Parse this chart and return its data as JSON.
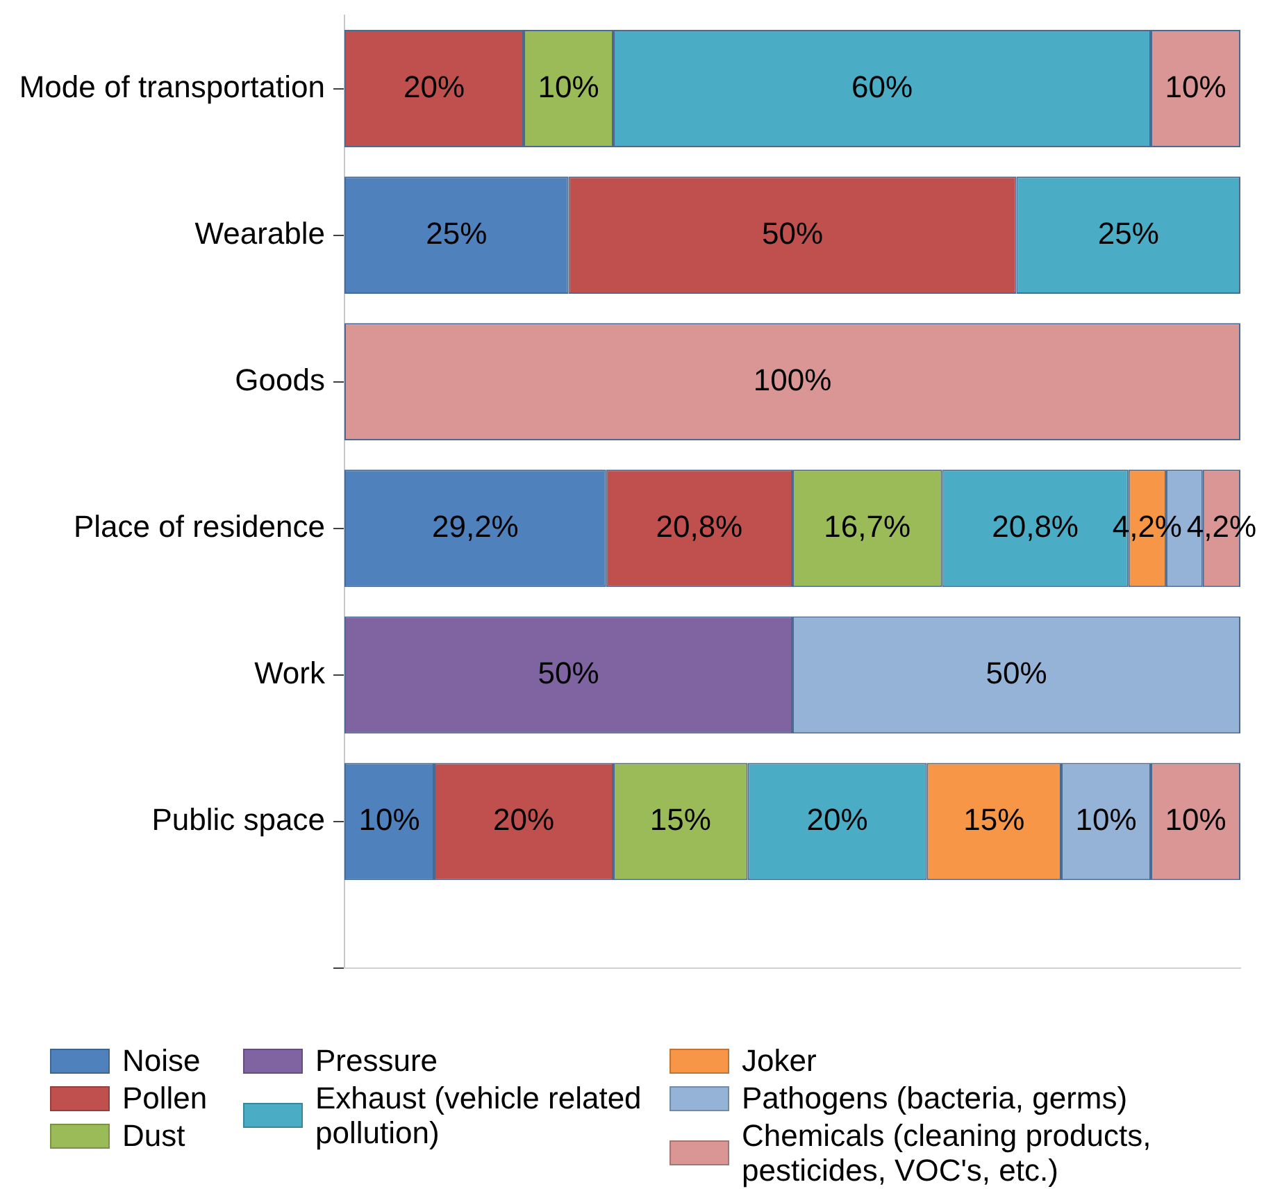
{
  "chart_data": {
    "type": "bar",
    "orientation": "horizontal",
    "stacked": true,
    "categories": [
      "Mode of transportation",
      "Wearable",
      "Goods",
      "Place of residence",
      "Work",
      "Public space",
      null
    ],
    "xlim": [
      0,
      100
    ],
    "tick_labels": "y",
    "legend": "bottom",
    "series": [
      {
        "name": "Noise",
        "color": "#4f81bd",
        "values": [
          null,
          25,
          null,
          29.2,
          null,
          10,
          null
        ],
        "value_labels": [
          null,
          "25%",
          null,
          "29,2%",
          null,
          "10%",
          null
        ]
      },
      {
        "name": "Pollen",
        "color": "#c0504d",
        "values": [
          20,
          50,
          null,
          20.8,
          null,
          20,
          null
        ],
        "value_labels": [
          "20%",
          "50%",
          null,
          "20,8%",
          null,
          "20%",
          null
        ]
      },
      {
        "name": "Dust",
        "color": "#9bbb59",
        "values": [
          10,
          null,
          null,
          16.7,
          null,
          15,
          null
        ],
        "value_labels": [
          "10%",
          null,
          null,
          "16,7%",
          null,
          "15%",
          null
        ]
      },
      {
        "name": "Pressure",
        "color": "#8064a2",
        "values": [
          null,
          null,
          null,
          null,
          50,
          null,
          null
        ],
        "value_labels": [
          null,
          null,
          null,
          null,
          "50%",
          null,
          null
        ]
      },
      {
        "name": "Exhaust (vehicle related pollution)",
        "color": "#4bacc6",
        "values": [
          60,
          25,
          null,
          20.8,
          null,
          20,
          null
        ],
        "value_labels": [
          "60%",
          "25%",
          null,
          "20,8%",
          null,
          "20%",
          null
        ]
      },
      {
        "name": "Joker",
        "color": "#f79646",
        "values": [
          null,
          null,
          null,
          4.2,
          null,
          15,
          null
        ],
        "value_labels": [
          null,
          null,
          null,
          "4,2%",
          null,
          "15%",
          null
        ]
      },
      {
        "name": "Pathogens (bacteria, germs)",
        "color": "#95b3d7",
        "values": [
          null,
          null,
          null,
          4.1,
          50,
          10,
          null
        ],
        "value_labels": [
          null,
          null,
          null,
          null,
          "50%",
          "10%",
          null
        ]
      },
      {
        "name": "Chemicals (cleaning products, pesticides, VOC's, etc.)",
        "color": "#d99694",
        "values": [
          10,
          null,
          100,
          4.2,
          null,
          10,
          null
        ],
        "value_labels": [
          "10%",
          null,
          "100%",
          "4,2%",
          null,
          "10%",
          null
        ]
      }
    ]
  }
}
